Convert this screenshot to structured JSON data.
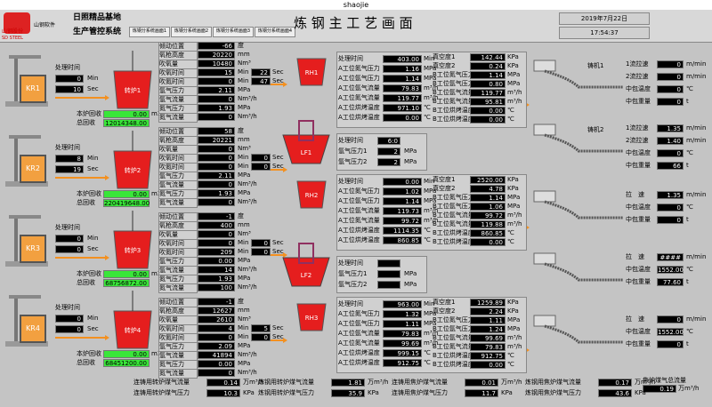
{
  "window_title": "shaojie",
  "header": {
    "logo": "山钢股份",
    "logo_en": "SD STEEL",
    "vendor": "山钢软件",
    "site": "日照精品基地",
    "system": "生产管控系统",
    "tabs": [
      "炼钢分系统画面1",
      "炼钢分系统画面2",
      "炼钢分系统画面3",
      "炼钢分系统画面4"
    ],
    "title": "炼 钢 主 工 艺 画 面",
    "date": "2019年7月22日",
    "time": "17:54:37"
  },
  "kr": [
    {
      "name": "KR1",
      "time_label": "处理时间",
      "min": "0",
      "sec": "10",
      "min_unit": "Min",
      "sec_unit": "Sec"
    },
    {
      "name": "KR2",
      "time_label": "处理时间",
      "min": "8",
      "sec": "19",
      "min_unit": "Min",
      "sec_unit": "Sec"
    },
    {
      "name": "KR3",
      "time_label": "处理时间",
      "min": "0",
      "sec": "0",
      "min_unit": "Min",
      "sec_unit": "Sec"
    },
    {
      "name": "KR4",
      "time_label": "处理时间",
      "min": "0",
      "sec": "0",
      "min_unit": "Min",
      "sec_unit": "Sec"
    }
  ],
  "converters": [
    {
      "name": "转炉1",
      "recovery_label": "本炉回收",
      "recovery": "0.00",
      "total_label": "总回收",
      "total": "12014348.00",
      "unit": "m3"
    },
    {
      "name": "转炉2",
      "recovery_label": "本炉回收",
      "recovery": "0.00",
      "total_label": "总回收",
      "total": "220419648.00",
      "unit": "m3"
    },
    {
      "name": "转炉3",
      "recovery_label": "本炉回收",
      "recovery": "0.00",
      "total_label": "总回收",
      "total": "68756872.00",
      "unit": "m3"
    },
    {
      "name": "转炉4",
      "recovery_label": "本炉回收",
      "recovery": "0.00",
      "total_label": "总回收",
      "total": "68451200.00",
      "unit": "m3"
    }
  ],
  "converter_params": {
    "labels": [
      "倾动位置",
      "氧枪高度",
      "吹氧量",
      "吹氧时间",
      "吹氮时间",
      "氩气压力",
      "氩气流量",
      "氮气压力",
      "氮气流量"
    ],
    "units": [
      "度",
      "mm",
      "Nm³",
      "Min",
      "Min",
      "MPa",
      "Nm³/h",
      "MPa",
      "Nm³/h"
    ],
    "sec_unit": "Sec",
    "panels": [
      {
        "values": [
          "-66",
          "20220",
          "10480",
          "15",
          "0",
          "2.11",
          "0",
          "1.93",
          "0"
        ],
        "secs": [
          "22",
          "47"
        ]
      },
      {
        "values": [
          "58",
          "20221",
          "0",
          "0",
          "0",
          "2.11",
          "0",
          "1.93",
          "0"
        ],
        "secs": [
          "0",
          "0"
        ]
      },
      {
        "values": [
          "-1",
          "400",
          "0",
          "0",
          "209",
          "0.00",
          "14",
          "1.93",
          "100"
        ],
        "secs": [
          "0",
          "0"
        ]
      },
      {
        "values": [
          "-1",
          "12627",
          "2610",
          "4",
          "0",
          "2.09",
          "41894",
          "0.00",
          "0"
        ],
        "secs": [
          "5",
          "0"
        ]
      }
    ]
  },
  "rh": {
    "left_labels": [
      "处理时间",
      "A工位氮气压力",
      "A工位氩气压力",
      "A工位氩气流量",
      "A工位氮气流量",
      "A工位烘烤温度",
      "A工位烘烤温度"
    ],
    "left_units": [
      "Min",
      "MPa",
      "MPa",
      "m³/h",
      "m³/h",
      "℃",
      "℃"
    ],
    "right_labels": [
      "真空度1",
      "真空度2",
      "B工位氮气压力",
      "B工位氩气压力",
      "B工位氩气流量",
      "B工位氮气流量",
      "B工位烘烤温度",
      "B工位烘烤温度"
    ],
    "right_units": [
      "KPa",
      "KPa",
      "MPa",
      "MPa",
      "m³/h",
      "m³/h",
      "℃",
      "℃"
    ],
    "units": [
      {
        "name": "RH1",
        "left": [
          "403.00",
          "1.16",
          "1.14",
          "79.83",
          "119.77",
          "971.10",
          "0.00"
        ],
        "right": [
          "142.44",
          "0.24",
          "1.14",
          "0.80",
          "119.77",
          "95.81",
          "0.00",
          "0.00"
        ]
      },
      {
        "name": "RH2",
        "left": [
          "0.00",
          "1.02",
          "1.14",
          "119.73",
          "99.72",
          "1114.35",
          "860.85"
        ],
        "right": [
          "2520.00",
          "4.78",
          "1.14",
          "1.06",
          "99.72",
          "119.88",
          "860.85",
          "0.00"
        ]
      },
      {
        "name": "RH3",
        "left": [
          "963.00",
          "1.32",
          "1.11",
          "79.83",
          "99.69",
          "999.15",
          "912.75"
        ],
        "right": [
          "1259.89",
          "2.24",
          "1.11",
          "1.24",
          "99.69",
          "79.83",
          "912.75",
          "0.00"
        ]
      }
    ]
  },
  "lf": {
    "labels": [
      "处理时间",
      "氩气压力1",
      "氩气压力2"
    ],
    "units": [
      "MPa",
      "MPa"
    ],
    "units_list": [
      {
        "name": "LF1",
        "values": [
          "6:0",
          "2",
          "2"
        ]
      },
      {
        "name": "LF2",
        "values": [
          null,
          null,
          null
        ]
      }
    ]
  },
  "casters": [
    {
      "name": "铸机1",
      "rows": [
        {
          "label": "1流拉速",
          "value": "0",
          "unit": "m/min"
        },
        {
          "label": "2流拉速",
          "value": "0",
          "unit": "m/min"
        },
        {
          "label": "中包温度",
          "value": "0",
          "unit": "℃"
        },
        {
          "label": "中包重量",
          "value": "0",
          "unit": "t"
        }
      ]
    },
    {
      "name": "铸机2",
      "rows": [
        {
          "label": "1流拉速",
          "value": "1.35",
          "unit": "m/min"
        },
        {
          "label": "2流拉速",
          "value": "1.40",
          "unit": "m/min"
        },
        {
          "label": "中包温度",
          "value": "0",
          "unit": "℃"
        },
        {
          "label": "中包重量",
          "value": "66",
          "unit": "t"
        }
      ]
    },
    {
      "rows": [
        {
          "label": "拉　速",
          "value": "1.35",
          "unit": "m/min"
        },
        {
          "label": "中包温度",
          "value": "0",
          "unit": "℃"
        },
        {
          "label": "中包重量",
          "value": "0",
          "unit": "t"
        }
      ]
    },
    {
      "rows": [
        {
          "label": "拉　速",
          "value": "####",
          "unit": "m/min"
        },
        {
          "label": "中包温度",
          "value": "1552.00",
          "unit": "℃"
        },
        {
          "label": "中包重量",
          "value": "77.60",
          "unit": "t"
        }
      ]
    },
    {
      "rows": [
        {
          "label": "拉　速",
          "value": "0",
          "unit": "m/min"
        },
        {
          "label": "中包温度",
          "value": "1552.00",
          "unit": "℃"
        },
        {
          "label": "中包重量",
          "value": "0",
          "unit": "t"
        }
      ]
    }
  ],
  "gas": [
    {
      "label": "连铸用转炉煤气流量",
      "value": "0.14",
      "unit": "万m³/h"
    },
    {
      "label": "炼钢用转炉煤气流量",
      "value": "1.81",
      "unit": "万m³/h"
    },
    {
      "label": "连铸用焦炉煤气流量",
      "value": "0.01",
      "unit": "万m³/h"
    },
    {
      "label": "炼钢用焦炉煤气流量",
      "value": "0.17",
      "unit": "万m³/h"
    },
    {
      "label": "焦炉煤气总流量",
      "value": "0.19",
      "unit": "万m³/h"
    },
    {
      "label": "连铸用转炉煤气压力",
      "value": "10.3",
      "unit": "KPa"
    },
    {
      "label": "炼钢用转炉煤气压力",
      "value": "35.9",
      "unit": "KPa"
    },
    {
      "label": "连铸用焦炉煤气压力",
      "value": "11.7",
      "unit": "KPa"
    },
    {
      "label": "炼钢用焦炉煤气压力",
      "value": "43.6",
      "unit": "KPa"
    }
  ]
}
